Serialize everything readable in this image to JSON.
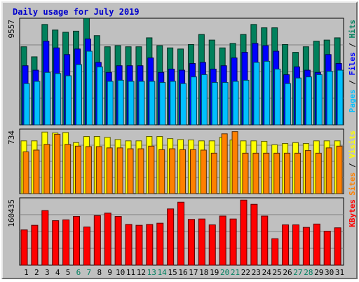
{
  "title": "Daily usage for July 2019",
  "colors": {
    "background": "#c0c0c0",
    "plot": "#c0c0c0",
    "hits": "#00805c",
    "files": "#0000ff",
    "pages": "#00c0ff",
    "visits": "#ffff00",
    "sites": "#ff8000",
    "kbytes": "#ff0000",
    "title": "#0000cc",
    "weekend_day": "#008060"
  },
  "chart_data": [
    {
      "type": "bar",
      "title": "Daily usage for July 2019",
      "categories": [
        "1",
        "2",
        "3",
        "4",
        "5",
        "6",
        "7",
        "8",
        "9",
        "10",
        "11",
        "12",
        "13",
        "14",
        "15",
        "16",
        "17",
        "18",
        "19",
        "20",
        "21",
        "22",
        "23",
        "24",
        "25",
        "26",
        "27",
        "28",
        "29",
        "30",
        "31"
      ],
      "weekend_days": [
        "6",
        "7",
        "13",
        "14",
        "20",
        "21",
        "27",
        "28"
      ],
      "ymax_label": "9557",
      "ylim": [
        0,
        9557
      ],
      "series": [
        {
          "name": "Hits",
          "values": [
            7000,
            6100,
            9000,
            8500,
            8300,
            8400,
            9557,
            8000,
            7000,
            7100,
            7000,
            7000,
            7800,
            7100,
            6900,
            6800,
            7200,
            8100,
            7600,
            6900,
            7300,
            8100,
            9000,
            8700,
            8700,
            7200,
            6500,
            7000,
            7500,
            7600,
            7800
          ]
        },
        {
          "name": "Files",
          "values": [
            5300,
            4900,
            7500,
            6900,
            6300,
            6800,
            7700,
            5600,
            4700,
            5300,
            5300,
            5300,
            6000,
            4700,
            5000,
            4900,
            5500,
            5600,
            5000,
            5300,
            6000,
            6500,
            7300,
            7100,
            6600,
            4500,
            5200,
            4900,
            4700,
            6300,
            5500
          ]
        },
        {
          "name": "Pages",
          "values": [
            3700,
            3900,
            4700,
            4600,
            4400,
            5400,
            6600,
            5200,
            3900,
            4000,
            3900,
            3900,
            3900,
            3800,
            3900,
            3700,
            4300,
            4500,
            3800,
            3800,
            3900,
            4000,
            5600,
            5700,
            5000,
            3700,
            4200,
            4300,
            4500,
            4800,
            4900
          ]
        }
      ],
      "series_label_parts": [
        "Pages",
        "Files",
        "Hits"
      ]
    },
    {
      "type": "bar",
      "ymax_label": "734",
      "ylim": [
        0,
        734
      ],
      "series": [
        {
          "name": "Visits",
          "values": [
            600,
            600,
            700,
            690,
            695,
            580,
            650,
            650,
            640,
            615,
            600,
            600,
            650,
            650,
            625,
            615,
            610,
            600,
            600,
            640,
            610,
            600,
            600,
            595,
            555,
            570,
            580,
            570,
            600,
            600,
            600
          ]
        },
        {
          "name": "Sites",
          "values": [
            475,
            495,
            560,
            675,
            560,
            540,
            535,
            535,
            520,
            520,
            510,
            510,
            540,
            500,
            510,
            500,
            500,
            495,
            460,
            680,
            705,
            460,
            460,
            460,
            460,
            460,
            460,
            490,
            460,
            520,
            540
          ]
        }
      ],
      "series_label_parts": [
        "Sites",
        "Visits"
      ]
    },
    {
      "type": "bar",
      "ymax_label": "160435",
      "ylim": [
        0,
        160435
      ],
      "series": [
        {
          "name": "KBytes",
          "values": [
            84000,
            95000,
            130000,
            106000,
            108000,
            116000,
            91000,
            118000,
            124000,
            116000,
            97000,
            95000,
            97000,
            100000,
            134000,
            150000,
            109000,
            110000,
            96000,
            117000,
            110000,
            155000,
            145000,
            117000,
            63000,
            96000,
            96000,
            90000,
            98000,
            81000,
            89000
          ]
        }
      ],
      "series_label_parts": [
        "KBytes"
      ]
    }
  ]
}
